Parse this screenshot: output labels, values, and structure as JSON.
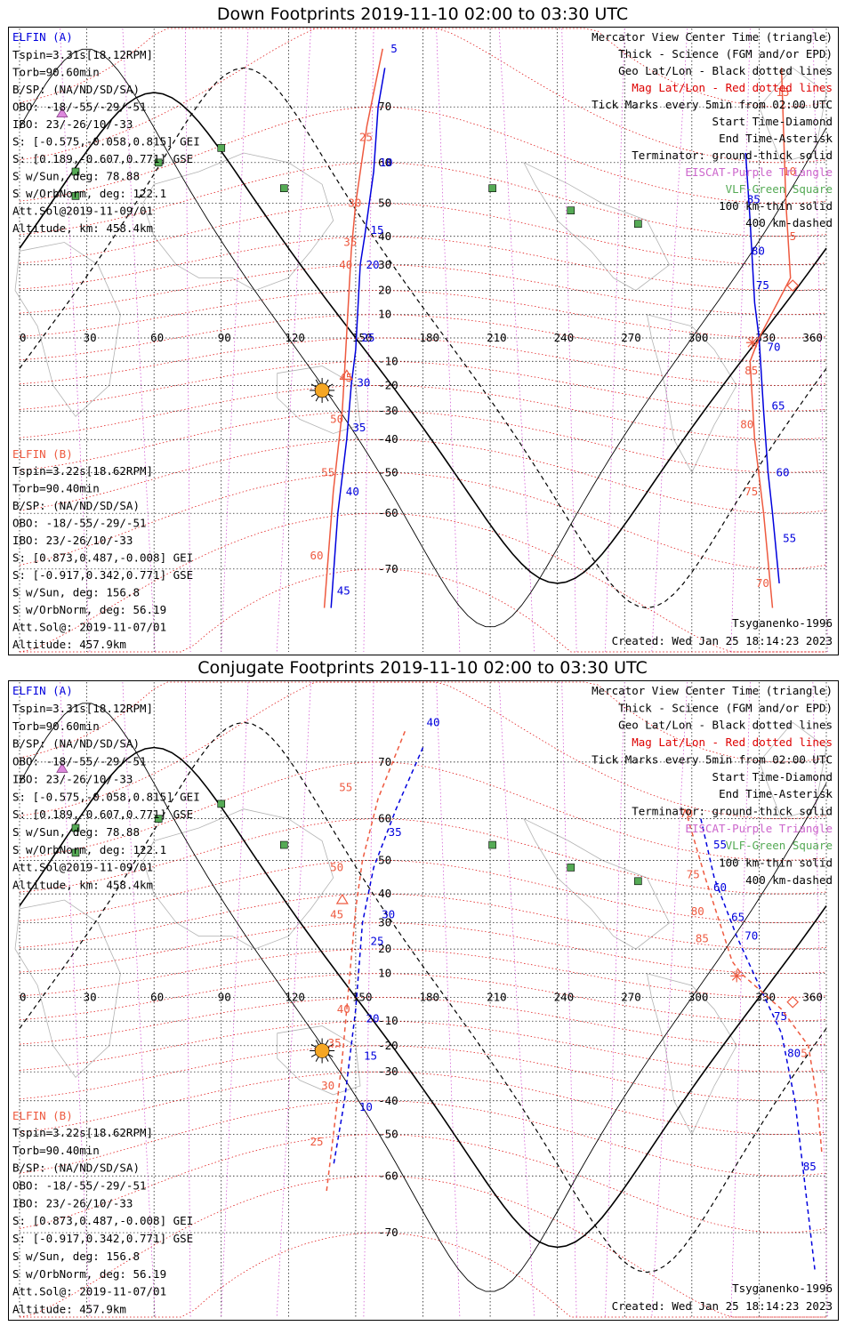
{
  "colors": {
    "elfin_a": "#0000dd",
    "elfin_b": "#ee5a40",
    "geo_grid": "#000000",
    "mag_grid": "#dd0000",
    "meridian": "#cc44cc",
    "coast": "#b3b3b3",
    "station": "#55aa55",
    "sun": "#f5a623"
  },
  "icons": [
    "sun-icon",
    "triangle-icon",
    "diamond-icon",
    "asterisk-icon",
    "square-icon"
  ],
  "lon_ticks": [
    "0",
    "30",
    "60",
    "90",
    "120",
    "150",
    "180",
    "210",
    "240",
    "270",
    "300",
    "330",
    "360"
  ],
  "lat_ticks": [
    "70",
    "60",
    "50",
    "40",
    "30",
    "20",
    "10",
    "-10",
    "-20",
    "-30",
    "-40",
    "-50",
    "-60",
    "-70"
  ],
  "legend": [
    "Mercator View Center Time (triangle)",
    "Thick - Science (FGM and/or EPD)",
    "Geo Lat/Lon - Black dotted lines",
    "Mag Lat/Lon - Red dotted lines",
    "Tick Marks every 5min from 02:00 UTC",
    "Start Time-Diamond",
    "End Time-Asterisk",
    "Terminator: ground-thick solid",
    "EISCAT-Purple Triangle",
    "VLF-Green Square",
    "100 km-thin solid",
    "400 km-dashed"
  ],
  "elfin_a": {
    "header": "ELFIN (A)",
    "lines": [
      "Tspin=3.31s[18.12RPM]",
      "Torb=90.60min",
      "B/SP: (NA/ND/SD/SA)",
      "OBO: -18/-55/-29/-51",
      "IBO: 23/-26/10/-33",
      "S: [-0.575,-0.058,0.815] GEI",
      "S: [0.189,-0.607,0.771] GSE",
      "S w/Sun, deg: 78.88",
      "S w/OrbNorm, deg: 122.1",
      "Att.Sol@2019-11-09/01",
      "Altitude, km: 458.4km"
    ]
  },
  "elfin_b": {
    "header": "ELFIN (B)",
    "lines": [
      "Tspin=3.22s[18.62RPM]",
      "Torb=90.40min",
      "B/SP: (NA/ND/SD/SA)",
      "OBO: -18/-55/-29/-51",
      "IBO: 23/-26/10/-33",
      "S: [0.873,0.487,-0.008] GEI",
      "S: [-0.917,0.342,0.771] GSE",
      "S w/Sun, deg: 156.8",
      "S w/OrbNorm, deg: 56.19",
      "Att.Sol@: 2019-11-07/01",
      "Altitude: 457.9km"
    ]
  },
  "footer": {
    "model": "Tsyganenko-1996",
    "created": "Created: Wed Jan 25 18:14:23 2023"
  },
  "panels": [
    {
      "title": "Down Footprints 2019-11-10 02:00 to 03:30 UTC",
      "dashed": false,
      "sun": [
        135,
        -22
      ],
      "tracks": [
        {
          "sat": "a",
          "points": [
            [
              163,
              75
            ],
            [
              160,
              70
            ],
            [
              158,
              58
            ],
            [
              154,
              40
            ],
            [
              152,
              30
            ],
            [
              150,
              -5
            ],
            [
              148,
              -20
            ],
            [
              146,
              -40
            ],
            [
              142,
              -60
            ],
            [
              139,
              -75
            ]
          ],
          "ticks": [
            {
              "label": "5",
              "at": [
                164,
                77
              ]
            },
            {
              "label": "10",
              "at": [
                159,
                60
              ]
            },
            {
              "label": "15",
              "at": [
                155,
                42
              ]
            },
            {
              "label": "20",
              "at": [
                153,
                30
              ]
            },
            {
              "label": "25",
              "at": [
                151,
                0
              ]
            },
            {
              "label": "30",
              "at": [
                149,
                -19
              ]
            },
            {
              "label": "35",
              "at": [
                147,
                -36
              ]
            },
            {
              "label": "40",
              "at": [
                144,
                -55
              ]
            },
            {
              "label": "45",
              "at": [
                140,
                -73
              ]
            }
          ]
        },
        {
          "sat": "b",
          "points": [
            [
              162,
              77
            ],
            [
              155,
              67
            ],
            [
              150,
              50
            ],
            [
              148,
              35
            ],
            [
              145,
              -15
            ],
            [
              144,
              -30
            ],
            [
              140,
              -55
            ],
            [
              136,
              -75
            ]
          ],
          "ticks": [
            {
              "label": "25",
              "at": [
                150,
                65
              ]
            },
            {
              "label": "30",
              "at": [
                145,
                50
              ]
            },
            {
              "label": "35",
              "at": [
                143,
                38
              ]
            },
            {
              "label": "40",
              "at": [
                141,
                30
              ]
            },
            {
              "label": "45",
              "at": [
                141,
                -17
              ]
            },
            {
              "label": "50",
              "at": [
                137,
                -33
              ]
            },
            {
              "label": "55",
              "at": [
                133,
                -50
              ]
            },
            {
              "label": "60",
              "at": [
                128,
                -68
              ]
            }
          ]
        },
        {
          "sat": "a",
          "points": [
            [
              324,
              62
            ],
            [
              326,
              45
            ],
            [
              328,
              15
            ],
            [
              330,
              0
            ],
            [
              332,
              -30
            ],
            [
              334,
              -50
            ],
            [
              336,
              -60
            ],
            [
              339,
              -72
            ]
          ],
          "ticks": [
            {
              "label": "70",
              "at": [
                332,
                -4
              ]
            },
            {
              "label": "75",
              "at": [
                327,
                22
              ]
            },
            {
              "label": "80",
              "at": [
                325,
                35
              ]
            },
            {
              "label": "85",
              "at": [
                323,
                51
              ]
            },
            {
              "label": "65",
              "at": [
                334,
                -28
              ]
            },
            {
              "label": "60",
              "at": [
                336,
                -50
              ]
            },
            {
              "label": "55",
              "at": [
                339,
                -65
              ]
            }
          ]
        },
        {
          "sat": "b",
          "points": [
            [
              340,
              75
            ],
            [
              342,
              50
            ],
            [
              344,
              25
            ],
            [
              330,
              0
            ],
            [
              326,
              -10
            ],
            [
              328,
              -40
            ],
            [
              332,
              -60
            ],
            [
              336,
              -75
            ]
          ],
          "ticks": [
            {
              "label": "15",
              "at": [
                336,
                72
              ]
            },
            {
              "label": "10",
              "at": [
                339,
                58
              ]
            },
            {
              "label": "5",
              "at": [
                342,
                40
              ]
            },
            {
              "label": "85",
              "at": [
                322,
                -14
              ]
            },
            {
              "label": "80",
              "at": [
                320,
                -35
              ]
            },
            {
              "label": "75",
              "at": [
                322,
                -55
              ]
            },
            {
              "label": "70",
              "at": [
                327,
                -72
              ]
            }
          ]
        }
      ]
    },
    {
      "title": "Conjugate Footprints 2019-11-10 02:00 to 03:30 UTC",
      "dashed": true,
      "sun": [
        135,
        -22
      ],
      "tracks": [
        {
          "sat": "a",
          "points": [
            [
              180,
              72
            ],
            [
              168,
              62
            ],
            [
              158,
              48
            ],
            [
              153,
              30
            ],
            [
              150,
              -5
            ],
            [
              148,
              -20
            ],
            [
              145,
              -40
            ],
            [
              140,
              -58
            ]
          ],
          "ticks": [
            {
              "label": "40",
              "at": [
                180,
                75
              ]
            },
            {
              "label": "35",
              "at": [
                163,
                57
              ]
            },
            {
              "label": "30",
              "at": [
                160,
                33
              ]
            },
            {
              "label": "25",
              "at": [
                155,
                23
              ]
            },
            {
              "label": "20",
              "at": [
                153,
                -9
              ]
            },
            {
              "label": "15",
              "at": [
                152,
                -24
              ]
            },
            {
              "label": "10",
              "at": [
                150,
                -42
              ]
            }
          ]
        },
        {
          "sat": "b",
          "points": [
            [
              172,
              74
            ],
            [
              160,
              64
            ],
            [
              153,
              50
            ],
            [
              150,
              35
            ],
            [
              146,
              -5
            ],
            [
              144,
              -25
            ],
            [
              141,
              -45
            ],
            [
              137,
              -63
            ]
          ],
          "ticks": [
            {
              "label": "55",
              "at": [
                141,
                66
              ]
            },
            {
              "label": "50",
              "at": [
                137,
                48
              ]
            },
            {
              "label": "45",
              "at": [
                137,
                33
              ]
            },
            {
              "label": "40",
              "at": [
                140,
                -5
              ]
            },
            {
              "label": "35",
              "at": [
                136,
                -19
              ]
            },
            {
              "label": "30",
              "at": [
                133,
                -35
              ]
            },
            {
              "label": "25",
              "at": [
                128,
                -52
              ]
            }
          ]
        },
        {
          "sat": "a",
          "points": [
            [
              304,
              60
            ],
            [
              310,
              45
            ],
            [
              320,
              25
            ],
            [
              330,
              5
            ],
            [
              340,
              -15
            ],
            [
              346,
              -40
            ],
            [
              350,
              -60
            ],
            [
              355,
              -75
            ]
          ],
          "ticks": [
            {
              "label": "55",
              "at": [
                308,
                54
              ]
            },
            {
              "label": "60",
              "at": [
                308,
                42
              ]
            },
            {
              "label": "65",
              "at": [
                316,
                32
              ]
            },
            {
              "label": "70",
              "at": [
                322,
                25
              ]
            },
            {
              "label": "75",
              "at": [
                335,
                -8
              ]
            },
            {
              "label": "80",
              "at": [
                341,
                -23
              ]
            },
            {
              "label": "85",
              "at": [
                348,
                -58
              ]
            }
          ]
        },
        {
          "sat": "b",
          "points": [
            [
              297,
              62
            ],
            [
              306,
              45
            ],
            [
              318,
              15
            ],
            [
              322,
              10
            ],
            [
              340,
              -5
            ],
            [
              352,
              -20
            ],
            [
              356,
              -40
            ],
            [
              358,
              -55
            ]
          ],
          "ticks": [
            {
              "label": "70",
              "at": [
                293,
                61
              ]
            },
            {
              "label": "75",
              "at": [
                296,
                46
              ]
            },
            {
              "label": "80",
              "at": [
                298,
                34
              ]
            },
            {
              "label": "85",
              "at": [
                300,
                24
              ]
            },
            {
              "label": "5",
              "at": [
                347,
                -23
              ]
            }
          ]
        }
      ]
    }
  ]
}
